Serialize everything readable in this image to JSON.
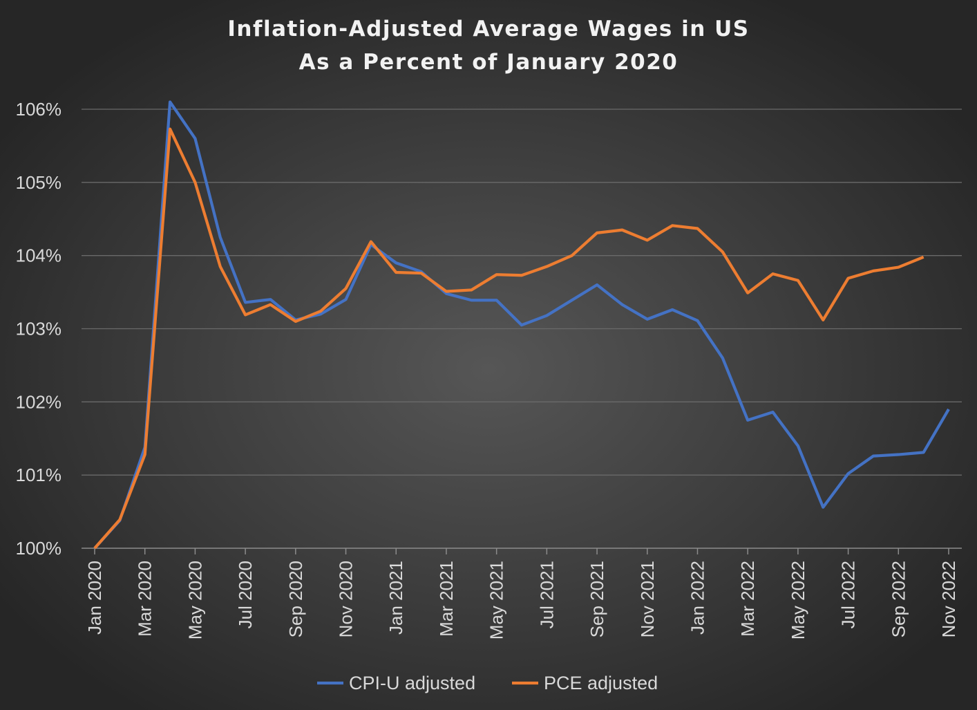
{
  "chart_data": {
    "type": "line",
    "title": [
      "Inflation-Adjusted Average Wages in US",
      "As a Percent of January 2020"
    ],
    "xlabel": "",
    "ylabel": "",
    "ylim": [
      100,
      106
    ],
    "y_ticks": [
      100,
      101,
      102,
      103,
      104,
      105,
      106
    ],
    "y_tick_labels": [
      "100%",
      "101%",
      "102%",
      "103%",
      "104%",
      "105%",
      "106%"
    ],
    "x_tick_labels": [
      "Jan 2020",
      "Mar 2020",
      "May 2020",
      "Jul 2020",
      "Sep 2020",
      "Nov 2020",
      "Jan 2021",
      "Mar 2021",
      "May 2021",
      "Jul 2021",
      "Sep 2021",
      "Nov 2021",
      "Jan 2022",
      "Mar 2022",
      "May 2022",
      "Jul 2022",
      "Sep 2022",
      "Nov 2022"
    ],
    "x_tick_every": 2,
    "grid": "horizontal",
    "legend_position": "bottom",
    "x": [
      "Jan 2020",
      "Feb 2020",
      "Mar 2020",
      "Apr 2020",
      "May 2020",
      "Jun 2020",
      "Jul 2020",
      "Aug 2020",
      "Sep 2020",
      "Oct 2020",
      "Nov 2020",
      "Dec 2020",
      "Jan 2021",
      "Feb 2021",
      "Mar 2021",
      "Apr 2021",
      "May 2021",
      "Jun 2021",
      "Jul 2021",
      "Aug 2021",
      "Sep 2021",
      "Oct 2021",
      "Nov 2021",
      "Dec 2021",
      "Jan 2022",
      "Feb 2022",
      "Mar 2022",
      "Apr 2022",
      "May 2022",
      "Jun 2022",
      "Jul 2022",
      "Aug 2022",
      "Sep 2022",
      "Oct 2022",
      "Nov 2022"
    ],
    "series": [
      {
        "name": "CPI-U adjusted",
        "color": "#4472c4",
        "values": [
          100.0,
          100.38,
          101.38,
          106.1,
          105.6,
          104.25,
          103.36,
          103.4,
          103.12,
          103.2,
          103.4,
          104.15,
          103.9,
          103.78,
          103.48,
          103.39,
          103.39,
          103.05,
          103.18,
          103.39,
          103.6,
          103.33,
          103.13,
          103.26,
          103.11,
          102.6,
          101.75,
          101.86,
          101.4,
          100.56,
          101.02,
          101.26,
          101.28,
          101.31,
          101.9
        ]
      },
      {
        "name": "PCE adjusted",
        "color": "#ed7d31",
        "values": [
          100.0,
          100.39,
          101.28,
          105.73,
          105.0,
          103.85,
          103.19,
          103.33,
          103.1,
          103.24,
          103.55,
          104.19,
          103.77,
          103.76,
          103.51,
          103.53,
          103.74,
          103.73,
          103.85,
          104.0,
          104.31,
          104.35,
          104.21,
          104.41,
          104.37,
          104.05,
          103.49,
          103.75,
          103.66,
          103.12,
          103.69,
          103.79,
          103.84,
          103.98,
          null
        ]
      }
    ]
  }
}
